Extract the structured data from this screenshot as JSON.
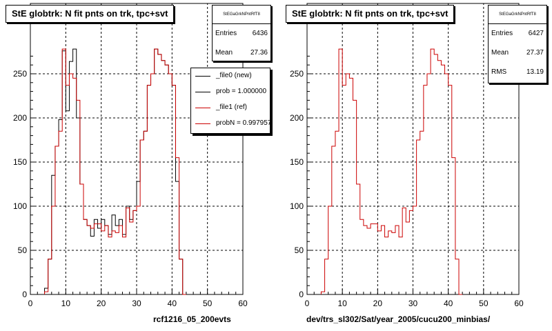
{
  "panels": [
    {
      "title": "StE globtrk: N fit pnts on trk, tpc+svt",
      "stats": {
        "name": "StEGaGrkNPntRfT8",
        "rows": [
          {
            "key": "Entries",
            "value": "6436"
          },
          {
            "key": "Mean",
            "value": "27.36"
          }
        ]
      },
      "legend": [
        {
          "label": "_file0 (new)",
          "color": "#000000"
        },
        {
          "label": "prob = 1.000000",
          "color": "#000000"
        },
        {
          "label": "_file1 (ref)",
          "color": "#cc0000"
        },
        {
          "label": "probN = 0.997957",
          "color": "#cc0000"
        }
      ],
      "footer": "rcf1216_05_200evts"
    },
    {
      "title": "StE globtrk: N fit pnts on trk, tpc+svt",
      "stats": {
        "name": "StEGaGrkNPntRfT8",
        "rows": [
          {
            "key": "Entries",
            "value": "6427"
          },
          {
            "key": "Mean",
            "value": "27.37"
          },
          {
            "key": "RMS",
            "value": "13.19"
          }
        ]
      },
      "footer": "dev/trs_sl302/Sat/year_2005/cucu200_minbias/"
    }
  ],
  "chart_data": [
    {
      "type": "histogram",
      "title": "StE globtrk: N fit pnts on trk, tpc+svt",
      "xlim": [
        0,
        60
      ],
      "ylim": [
        0,
        275
      ],
      "xticks": [
        0,
        10,
        20,
        30,
        40,
        50,
        60
      ],
      "yticks": [
        0,
        50,
        100,
        150,
        200,
        250
      ],
      "grid": true,
      "legend": "top-right",
      "bin_width": 1,
      "series": [
        {
          "name": "_file0 (new)",
          "color": "#000000",
          "start": 4,
          "values": [
            7,
            40,
            135,
            168,
            198,
            276,
            208,
            264,
            278,
            200,
            125,
            85,
            78,
            66,
            85,
            75,
            85,
            78,
            68,
            90,
            78,
            85,
            68,
            100,
            85,
            95,
            128,
            175,
            185,
            237,
            250,
            278,
            272,
            265,
            260,
            250,
            237,
            128,
            40,
            0
          ]
        },
        {
          "name": "_file1 (ref)",
          "color": "#cc0000",
          "start": 4,
          "values": [
            3,
            40,
            100,
            168,
            185,
            278,
            237,
            250,
            245,
            220,
            125,
            85,
            78,
            75,
            80,
            80,
            72,
            78,
            65,
            72,
            70,
            78,
            65,
            98,
            82,
            95,
            100,
            175,
            185,
            237,
            250,
            278,
            272,
            265,
            260,
            250,
            237,
            155,
            40,
            0
          ]
        }
      ]
    },
    {
      "type": "histogram",
      "title": "StE globtrk: N fit pnts on trk, tpc+svt",
      "xlim": [
        0,
        60
      ],
      "ylim": [
        0,
        275
      ],
      "xticks": [
        0,
        10,
        20,
        30,
        40,
        50,
        60
      ],
      "yticks": [
        0,
        50,
        100,
        150,
        200,
        250
      ],
      "grid": true,
      "bin_width": 1,
      "series": [
        {
          "name": "_file1 (ref)",
          "color": "#cc0000",
          "start": 4,
          "values": [
            3,
            40,
            100,
            168,
            185,
            278,
            237,
            250,
            245,
            220,
            125,
            85,
            78,
            75,
            80,
            80,
            72,
            78,
            65,
            72,
            70,
            78,
            65,
            98,
            82,
            95,
            100,
            175,
            185,
            237,
            250,
            278,
            272,
            265,
            260,
            250,
            237,
            155,
            40,
            0
          ]
        }
      ]
    }
  ]
}
